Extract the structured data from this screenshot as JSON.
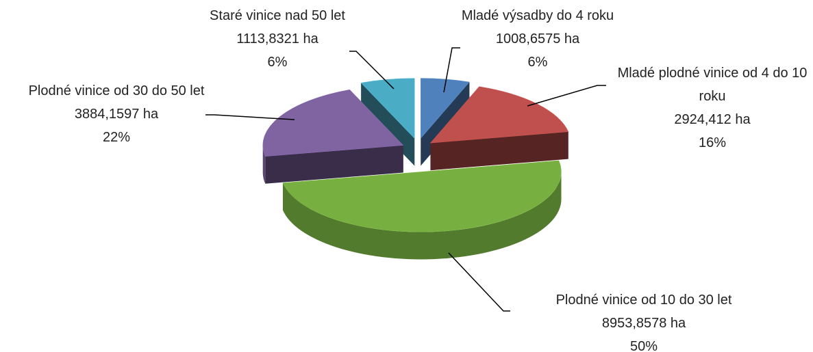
{
  "chart_data": {
    "type": "pie",
    "categories": [
      "Mladé výsadby do 4 roku",
      "Mladé plodné vinice od 4 do 10 roku",
      "Plodné vinice od 10 do 30 let",
      "Plodné vinice od 30 do 50 let",
      "Staré vinice nad 50 let"
    ],
    "values": [
      1008.6575,
      2924.412,
      8953.8578,
      3884.1597,
      1113.8321
    ],
    "value_labels": [
      "1008,6575 ha",
      "2924,412 ha",
      "8953,8578  ha",
      "3884,1597 ha",
      "1113,8321 ha"
    ],
    "percentages": [
      6,
      16,
      50,
      22,
      6
    ],
    "percentage_labels": [
      "6%",
      "16%",
      "50%",
      "22%",
      "6%"
    ],
    "colors": [
      "#4f81bd",
      "#c0504d",
      "#77b041",
      "#8064a2",
      "#4bacc6"
    ]
  }
}
